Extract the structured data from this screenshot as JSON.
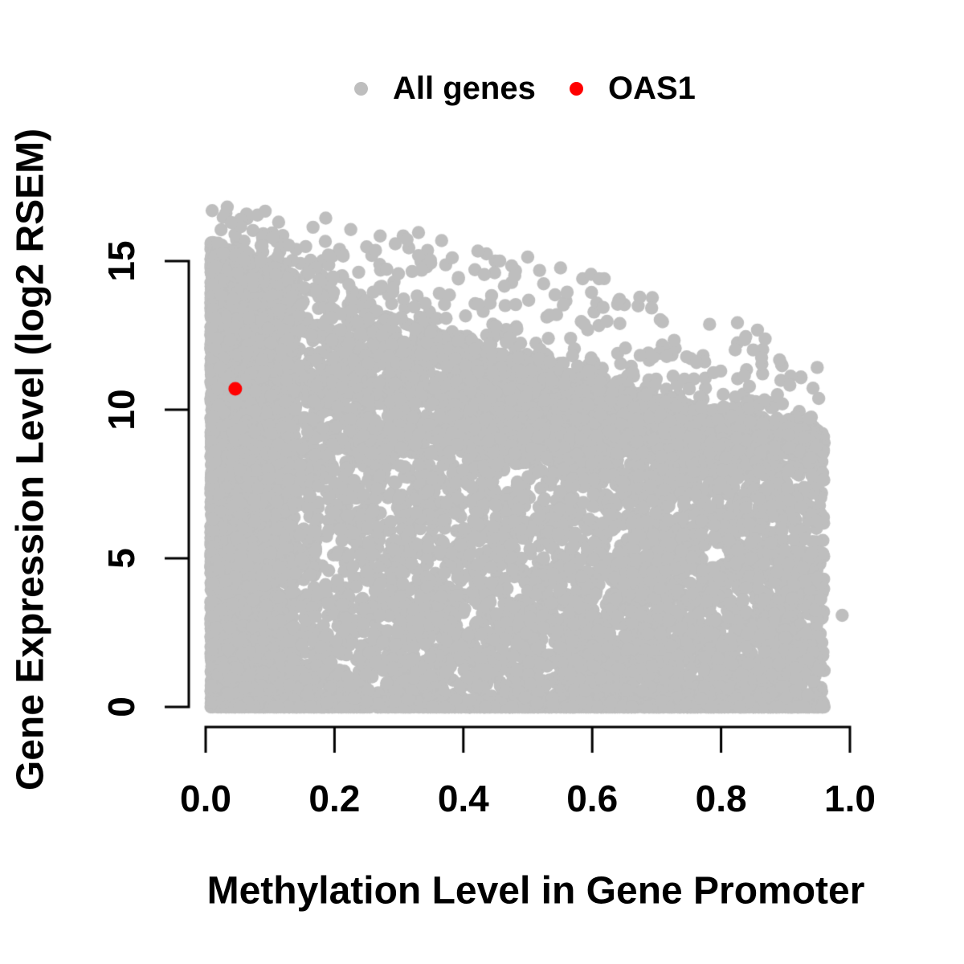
{
  "figure": {
    "background_color": "#FFFFFF",
    "text_color": "#000000"
  },
  "legend": {
    "position": "top-center",
    "items": [
      {
        "label": "All genes",
        "color": "#BEBEBE",
        "marker": "filled-circle"
      },
      {
        "label": "OAS1",
        "color": "#FF0000",
        "marker": "filled-circle"
      }
    ]
  },
  "axes": {
    "x": {
      "title": "Methylation Level in Gene Promoter",
      "range": [
        0.0,
        1.0
      ],
      "ticks": [
        0.0,
        0.2,
        0.4,
        0.6,
        0.8,
        1.0
      ],
      "tick_labels": [
        "0.0",
        "0.2",
        "0.4",
        "0.6",
        "0.8",
        "1.0"
      ]
    },
    "y": {
      "title": "Gene Expression Level (log2 RSEM)",
      "range": [
        0,
        17
      ],
      "ticks": [
        0,
        5,
        10,
        15
      ],
      "tick_labels": [
        "0",
        "5",
        "10",
        "15"
      ],
      "tick_label_rotation_deg": 90
    }
  },
  "chart_data": {
    "type": "scatter",
    "title": "",
    "xlabel": "Methylation Level in Gene Promoter",
    "ylabel": "Gene Expression Level (log2 RSEM)",
    "xlim": [
      0.0,
      1.0
    ],
    "ylim": [
      0,
      17
    ],
    "grid": false,
    "legend_position": "top",
    "series": [
      {
        "name": "All genes",
        "color": "#BEBEBE",
        "marker": "filled-circle",
        "point_radius_px": 8.2,
        "n_points": 11500,
        "cloud": {
          "seed": 42,
          "x_range": [
            0.008,
            0.96
          ],
          "y_range": [
            0,
            16.85
          ],
          "upper_envelope": "y_max(x) = 16.9 - 1.5*x - 4*x^2",
          "dense_upper_edge": "y_dense(x) = 15.5 - 9.3*x + 2.9*x^2",
          "shape_summary": "Very dense solid mass at low methylation spanning expression 0-15.5; solid bottom band (expression 0-8.5) across methylation 0-0.96; maximum expression declines as methylation increases; sparse scattered points along the upper envelope; many genes at expression 0.",
          "components": [
            {
              "name": "low-methylation-dense-column",
              "weight": 0.22,
              "x": "0.008 + 0.132*u^1.6",
              "y": "v^0.92 * y_dense(x) * 1.02"
            },
            {
              "name": "bottom-dense-mass",
              "weight": 0.38,
              "x": "0.008 + 0.952*u^0.8",
              "y": "8.5 * v^1.25"
            },
            {
              "name": "mid-band",
              "weight": 0.26,
              "x": "0.008 + 0.952*u^0.85",
              "y": "8.5 + (y_dense(x)-8.5)*v^1.1"
            },
            {
              "name": "zero-expression-band",
              "weight": 0.1,
              "x": "0.008 + 0.952*u^0.85",
              "y": "0 (60%) else 0.3*v"
            },
            {
              "name": "sparse-upper-scatter",
              "weight": 0.04,
              "x": "0.01 + 0.945*u",
              "y": "y_dense(x) + (y_max(x)-y_dense(x))*v^2.2"
            }
          ],
          "isolated_points": [
            [
              0.988,
              3.08
            ]
          ],
          "highest_point": [
            0.045,
            16.8
          ]
        }
      },
      {
        "name": "OAS1",
        "color": "#FF0000",
        "marker": "filled-circle",
        "point_radius_px": 8.5,
        "points": [
          [
            0.046,
            10.7
          ]
        ]
      }
    ]
  }
}
